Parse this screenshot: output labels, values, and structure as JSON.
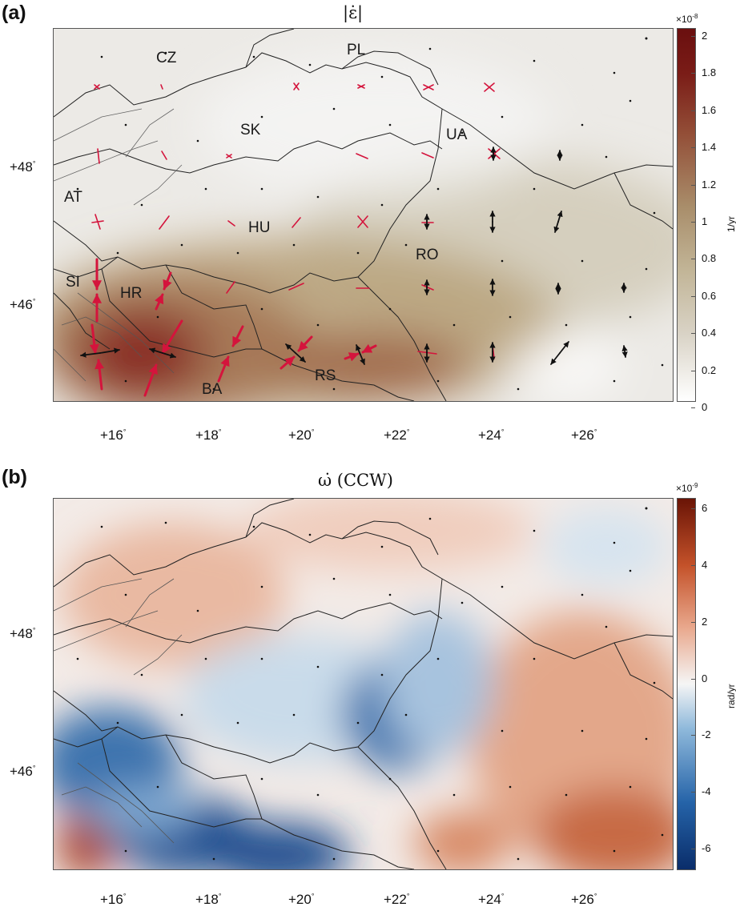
{
  "panel_a": {
    "letter": "(a)",
    "title": "|ε̇|",
    "colorbar": {
      "exponent_base": "×10",
      "exponent": "-8",
      "unit": "1/yr",
      "ticks": [
        "2",
        "1.8",
        "1.6",
        "1.4",
        "1.2",
        "1",
        "0.8",
        "0.6",
        "0.4",
        "0.2",
        "0"
      ]
    },
    "countries": [
      "CZ",
      "PL",
      "SK",
      "UA",
      "AT",
      "HU",
      "RO",
      "SI",
      "HR",
      "BA",
      "RS"
    ],
    "colors": {
      "low": "#ffffff",
      "mid": "#c2b597",
      "high": "#6a0f0f",
      "arrow_compression": "#d4143c",
      "arrow_extension": "#111111"
    }
  },
  "panel_b": {
    "letter": "(b)",
    "title": "ω̇ (CCW)",
    "colorbar": {
      "exponent_base": "×10",
      "exponent": "-9",
      "unit": "rad/yr",
      "ticks": [
        "6",
        "4",
        "2",
        "0",
        "-2",
        "-4",
        "-6"
      ]
    },
    "colors": {
      "negative": "#0a2d6a",
      "zero": "#f5f5f5",
      "positive": "#6a1406"
    }
  },
  "axes": {
    "lon_labels": [
      "+16",
      "+18",
      "+20",
      "+22",
      "+24",
      "+26"
    ],
    "lat_labels": [
      "+48",
      "+46"
    ],
    "degree": "°"
  }
}
